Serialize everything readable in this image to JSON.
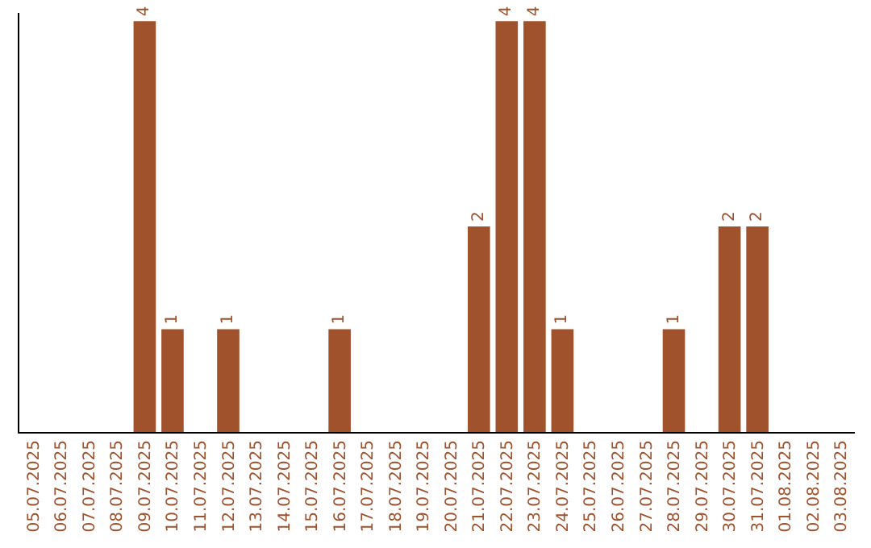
{
  "chart_data": {
    "type": "bar",
    "categories": [
      "05.07.2025",
      "06.07.2025",
      "07.07.2025",
      "08.07.2025",
      "09.07.2025",
      "10.07.2025",
      "11.07.2025",
      "12.07.2025",
      "13.07.2025",
      "14.07.2025",
      "15.07.2025",
      "16.07.2025",
      "17.07.2025",
      "18.07.2025",
      "19.07.2025",
      "20.07.2025",
      "21.07.2025",
      "22.07.2025",
      "23.07.2025",
      "24.07.2025",
      "25.07.2025",
      "26.07.2025",
      "27.07.2025",
      "28.07.2025",
      "29.07.2025",
      "30.07.2025",
      "31.07.2025",
      "01.08.2025",
      "02.08.2025",
      "03.08.2025"
    ],
    "values": [
      0,
      0,
      0,
      0,
      4,
      1,
      0,
      1,
      0,
      0,
      0,
      1,
      0,
      0,
      0,
      0,
      2,
      4,
      4,
      1,
      0,
      0,
      0,
      1,
      0,
      2,
      2,
      0,
      0,
      0
    ],
    "value_labels": [
      null,
      null,
      null,
      null,
      "4",
      "1",
      null,
      "1",
      null,
      null,
      null,
      "1",
      null,
      null,
      null,
      null,
      "2",
      "4",
      "4",
      "1",
      null,
      null,
      null,
      "1",
      null,
      "2",
      "2",
      null,
      null,
      null
    ],
    "color": "#a0522d",
    "tick_labels": "x"
  }
}
